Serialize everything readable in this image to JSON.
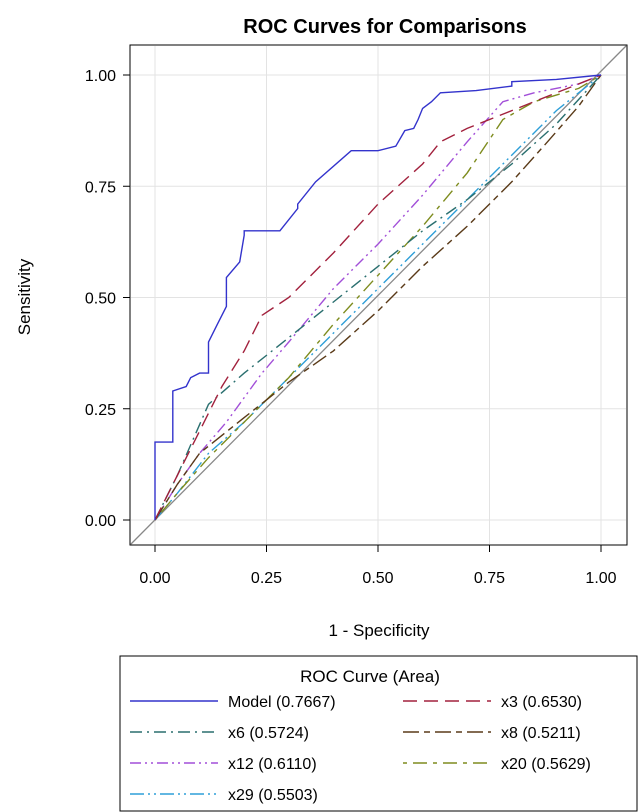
{
  "chart_data": {
    "type": "line",
    "title": "ROC Curves for Comparisons",
    "xlabel": "1 - Specificity",
    "ylabel": "Sensitivity",
    "xlim": [
      0,
      1
    ],
    "ylim": [
      0,
      1
    ],
    "x_ticks": [
      "0.00",
      "0.25",
      "0.50",
      "0.75",
      "1.00"
    ],
    "y_ticks": [
      "0.00",
      "0.25",
      "0.50",
      "0.75",
      "1.00"
    ],
    "grid": true,
    "reference_line": "diagonal",
    "legend": {
      "title": "ROC Curve (Area)",
      "placement": "bottom"
    },
    "series": [
      {
        "name": "Model",
        "area": "(0.7667)",
        "color": "#3333cc",
        "dash": "solid",
        "points": [
          [
            0,
            0
          ],
          [
            0,
            0.175
          ],
          [
            0.04,
            0.175
          ],
          [
            0.04,
            0.29
          ],
          [
            0.07,
            0.3
          ],
          [
            0.08,
            0.32
          ],
          [
            0.1,
            0.33
          ],
          [
            0.12,
            0.33
          ],
          [
            0.12,
            0.4
          ],
          [
            0.14,
            0.44
          ],
          [
            0.16,
            0.48
          ],
          [
            0.16,
            0.545
          ],
          [
            0.19,
            0.58
          ],
          [
            0.2,
            0.64
          ],
          [
            0.2,
            0.65
          ],
          [
            0.28,
            0.65
          ],
          [
            0.32,
            0.7
          ],
          [
            0.32,
            0.71
          ],
          [
            0.36,
            0.76
          ],
          [
            0.44,
            0.83
          ],
          [
            0.5,
            0.83
          ],
          [
            0.54,
            0.84
          ],
          [
            0.56,
            0.875
          ],
          [
            0.58,
            0.88
          ],
          [
            0.59,
            0.9
          ],
          [
            0.6,
            0.925
          ],
          [
            0.62,
            0.94
          ],
          [
            0.64,
            0.96
          ],
          [
            0.72,
            0.965
          ],
          [
            0.8,
            0.975
          ],
          [
            0.8,
            0.985
          ],
          [
            0.9,
            0.99
          ],
          [
            1,
            1
          ]
        ]
      },
      {
        "name": "x3",
        "area": "(0.6530)",
        "color": "#a2213d",
        "dash": "long",
        "points": [
          [
            0,
            0
          ],
          [
            0.05,
            0.1
          ],
          [
            0.1,
            0.2
          ],
          [
            0.15,
            0.3
          ],
          [
            0.2,
            0.38
          ],
          [
            0.24,
            0.46
          ],
          [
            0.3,
            0.5
          ],
          [
            0.4,
            0.6
          ],
          [
            0.5,
            0.71
          ],
          [
            0.6,
            0.8
          ],
          [
            0.64,
            0.85
          ],
          [
            0.7,
            0.88
          ],
          [
            0.8,
            0.92
          ],
          [
            0.9,
            0.96
          ],
          [
            1,
            1
          ]
        ]
      },
      {
        "name": "x6",
        "area": "(0.5724)",
        "color": "#2a6f6f",
        "dash": "dashdot",
        "points": [
          [
            0,
            0
          ],
          [
            0.05,
            0.1
          ],
          [
            0.12,
            0.26
          ],
          [
            0.2,
            0.33
          ],
          [
            0.3,
            0.41
          ],
          [
            0.4,
            0.49
          ],
          [
            0.5,
            0.57
          ],
          [
            0.6,
            0.65
          ],
          [
            0.7,
            0.72
          ],
          [
            0.8,
            0.8
          ],
          [
            0.9,
            0.89
          ],
          [
            1,
            1
          ]
        ]
      },
      {
        "name": "x8",
        "area": "(0.5211)",
        "color": "#5a3a18",
        "dash": "longshort",
        "points": [
          [
            0,
            0
          ],
          [
            0.05,
            0.08
          ],
          [
            0.1,
            0.15
          ],
          [
            0.2,
            0.23
          ],
          [
            0.3,
            0.31
          ],
          [
            0.4,
            0.38
          ],
          [
            0.5,
            0.47
          ],
          [
            0.6,
            0.57
          ],
          [
            0.7,
            0.66
          ],
          [
            0.8,
            0.76
          ],
          [
            0.88,
            0.85
          ],
          [
            0.95,
            0.93
          ],
          [
            1,
            1
          ]
        ]
      },
      {
        "name": "x12",
        "area": "(0.6110)",
        "color": "#a24fd8",
        "dash": "dashdotdot",
        "points": [
          [
            0,
            0
          ],
          [
            0.05,
            0.08
          ],
          [
            0.1,
            0.15
          ],
          [
            0.16,
            0.22
          ],
          [
            0.24,
            0.33
          ],
          [
            0.3,
            0.4
          ],
          [
            0.4,
            0.52
          ],
          [
            0.5,
            0.62
          ],
          [
            0.6,
            0.73
          ],
          [
            0.7,
            0.85
          ],
          [
            0.78,
            0.94
          ],
          [
            0.85,
            0.96
          ],
          [
            0.95,
            0.98
          ],
          [
            1,
            1
          ]
        ]
      },
      {
        "name": "x20",
        "area": "(0.5629)",
        "color": "#7e8c1e",
        "dash": "shortlong",
        "points": [
          [
            0,
            0
          ],
          [
            0.05,
            0.06
          ],
          [
            0.12,
            0.14
          ],
          [
            0.2,
            0.22
          ],
          [
            0.3,
            0.32
          ],
          [
            0.4,
            0.44
          ],
          [
            0.5,
            0.55
          ],
          [
            0.6,
            0.66
          ],
          [
            0.7,
            0.78
          ],
          [
            0.78,
            0.9
          ],
          [
            0.85,
            0.94
          ],
          [
            0.95,
            0.97
          ],
          [
            1,
            1
          ]
        ]
      },
      {
        "name": "x29",
        "area": "(0.5503)",
        "color": "#2e9fd8",
        "dash": "dashdotdotlong",
        "points": [
          [
            0,
            0
          ],
          [
            0.05,
            0.06
          ],
          [
            0.12,
            0.15
          ],
          [
            0.2,
            0.22
          ],
          [
            0.3,
            0.32
          ],
          [
            0.4,
            0.42
          ],
          [
            0.5,
            0.52
          ],
          [
            0.6,
            0.62
          ],
          [
            0.7,
            0.72
          ],
          [
            0.8,
            0.82
          ],
          [
            0.9,
            0.92
          ],
          [
            1,
            1
          ]
        ]
      }
    ]
  }
}
